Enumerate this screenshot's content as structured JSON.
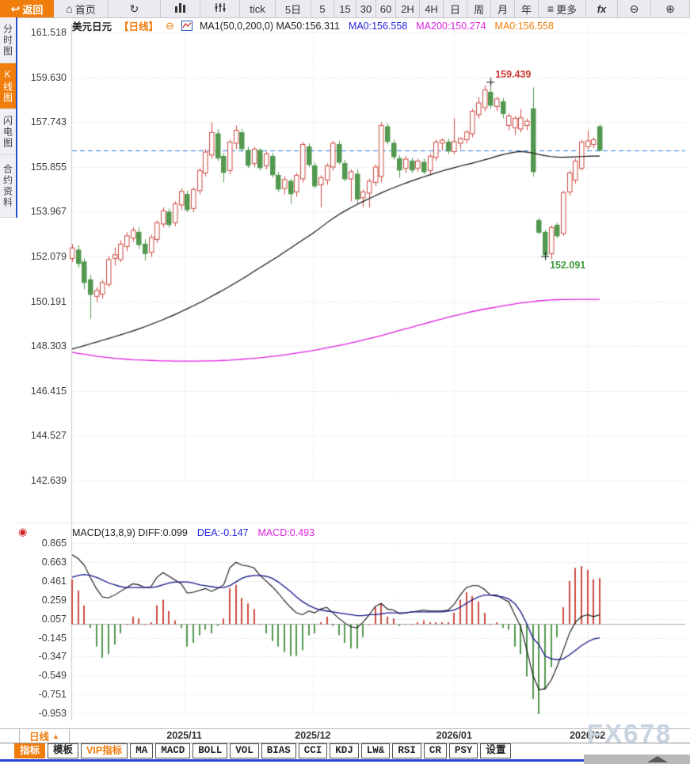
{
  "topbar": {
    "items": [
      {
        "name": "back-button",
        "icon": "back-arrow-icon",
        "glyph": "↩",
        "label": "返回",
        "active": true
      },
      {
        "name": "home-button",
        "icon": "home-icon",
        "glyph": "⌂",
        "label": "首页"
      },
      {
        "name": "refresh-button",
        "icon": "refresh-icon",
        "glyph": "↻",
        "label": ""
      },
      {
        "name": "kline-chart-button",
        "icon": "bar-chart-icon",
        "svg": "bars",
        "label": ""
      },
      {
        "name": "volume-bars-button",
        "icon": "tick-bars-icon",
        "svg": "ticks",
        "label": ""
      },
      {
        "name": "interval-tick-button",
        "label": "tick"
      },
      {
        "name": "interval-5d-button",
        "label": "5日"
      },
      {
        "name": "interval-5-button",
        "label": "5"
      },
      {
        "name": "interval-15-button",
        "label": "15"
      },
      {
        "name": "interval-30-button",
        "label": "30"
      },
      {
        "name": "interval-60-button",
        "label": "60"
      },
      {
        "name": "interval-2h-button",
        "label": "2H"
      },
      {
        "name": "interval-4h-button",
        "label": "4H"
      },
      {
        "name": "interval-day-button",
        "label": "日"
      },
      {
        "name": "interval-week-button",
        "label": "周"
      },
      {
        "name": "interval-month-button",
        "label": "月"
      },
      {
        "name": "interval-year-button",
        "label": "年"
      },
      {
        "name": "more-button",
        "icon": "menu-icon",
        "glyph": "≡",
        "label": "更多"
      },
      {
        "name": "fx-button",
        "label": "fx",
        "fx": true
      },
      {
        "name": "zoom-out-button",
        "icon": "zoom-out-icon",
        "glyph": "⊖",
        "label": ""
      },
      {
        "name": "zoom-in-button",
        "icon": "zoom-in-icon",
        "glyph": "⊕",
        "label": ""
      }
    ]
  },
  "sidebar": {
    "items": [
      {
        "name": "sidebar-item-time-chart",
        "label": "分时图",
        "active": false
      },
      {
        "name": "sidebar-item-kline-chart",
        "label": "K线图",
        "active": true
      },
      {
        "name": "sidebar-item-flash-chart",
        "label": "闪电图",
        "active": false
      },
      {
        "name": "sidebar-item-contract-info",
        "label": "合约资料",
        "active": false
      }
    ]
  },
  "chart_header": {
    "symbol": "美元日元",
    "period_tag": "【日线】",
    "collapse_icon": "⊖",
    "ma_segments": [
      {
        "text": "MA1(50,0,200,0) MA50:156.311",
        "color": "#222222"
      },
      {
        "text": "MA0:156.558",
        "color": "#2323dd"
      },
      {
        "text": "MA200:150.274",
        "color": "#dd22dd"
      },
      {
        "text": "MA0:156.558",
        "color": "#f07d0c"
      }
    ]
  },
  "macd_header": {
    "segments": [
      {
        "text": "MACD(13,8,9) DIFF:0.099",
        "color": "#222222"
      },
      {
        "text": "DEA:-0.147",
        "color": "#2323dd"
      },
      {
        "text": "MACD:0.493",
        "color": "#dd22dd"
      }
    ]
  },
  "period_selector": {
    "label": "日线",
    "arrow": "▲"
  },
  "bottom_tabs": [
    {
      "name": "tab-indicators",
      "label": "指标",
      "active": true
    },
    {
      "name": "tab-templates",
      "label": "模板"
    },
    {
      "name": "tab-vip-indicators",
      "label": "VIP指标",
      "vip": true
    },
    {
      "name": "tab-ma",
      "label": "MA"
    },
    {
      "name": "tab-macd",
      "label": "MACD"
    },
    {
      "name": "tab-boll",
      "label": "BOLL"
    },
    {
      "name": "tab-vol",
      "label": "VOL"
    },
    {
      "name": "tab-bias",
      "label": "BIAS"
    },
    {
      "name": "tab-cci",
      "label": "CCI"
    },
    {
      "name": "tab-kdj",
      "label": "KDJ"
    },
    {
      "name": "tab-lw",
      "label": "LW&"
    },
    {
      "name": "tab-rsi",
      "label": "RSI"
    },
    {
      "name": "tab-cr",
      "label": "CR"
    },
    {
      "name": "tab-psy",
      "label": "PSY"
    },
    {
      "name": "tab-settings",
      "label": "设置"
    }
  ],
  "watermark": "FX678",
  "colors": {
    "up": "#cc4b42",
    "down": "#53984f",
    "ma50": "#111111",
    "ma200": "#e01ee0",
    "diff": "#111111",
    "dea": "#14148c",
    "dashed": "#2e7fe0",
    "accent": "#f07d0c",
    "grid": "#d6d6d6",
    "axis": "#c8c8c8",
    "high_label": "#cc3b33",
    "low_label": "#3f9b3f"
  },
  "chart_data": {
    "type": "candlestick",
    "title": "美元日元 日线 (USD/JPY Daily)",
    "current_price": 156.558,
    "y_ticks": [
      161.518,
      159.63,
      157.743,
      155.855,
      153.967,
      152.079,
      150.191,
      148.303,
      146.415,
      144.527,
      142.639
    ],
    "x_labels": [
      "2025/11",
      "2025/12",
      "2026/01",
      "2026/02"
    ],
    "month_ticks": [
      {
        "label": "2025/11",
        "index": 18.5
      },
      {
        "label": "2025/12",
        "index": 39.7
      },
      {
        "label": "2026/01",
        "index": 63.0
      },
      {
        "label": "2026/02",
        "index": 85.0
      }
    ],
    "annotations": [
      {
        "label": "159.439",
        "type": "high",
        "candle": 69,
        "value": 159.439
      },
      {
        "label": "152.091",
        "type": "low",
        "candle": 78,
        "value": 152.091
      }
    ],
    "candles": [
      [
        152.0,
        152.6,
        151.85,
        152.44
      ],
      [
        152.35,
        152.55,
        151.6,
        151.78
      ],
      [
        151.85,
        152.0,
        150.7,
        150.98
      ],
      [
        151.1,
        151.3,
        149.45,
        150.48
      ],
      [
        150.4,
        150.78,
        150.15,
        150.65
      ],
      [
        150.5,
        151.1,
        150.3,
        150.98
      ],
      [
        150.9,
        152.1,
        150.8,
        151.95
      ],
      [
        152.0,
        152.45,
        151.7,
        152.15
      ],
      [
        151.95,
        152.75,
        151.85,
        152.6
      ],
      [
        152.5,
        153.1,
        152.3,
        152.95
      ],
      [
        152.85,
        153.3,
        152.7,
        153.18
      ],
      [
        153.1,
        153.3,
        152.4,
        152.58
      ],
      [
        152.6,
        152.8,
        151.9,
        152.2
      ],
      [
        152.25,
        153.0,
        152.05,
        152.88
      ],
      [
        152.8,
        153.6,
        152.65,
        153.5
      ],
      [
        153.45,
        154.15,
        153.3,
        154.0
      ],
      [
        153.95,
        154.1,
        153.3,
        153.42
      ],
      [
        153.5,
        154.4,
        153.35,
        154.3
      ],
      [
        154.25,
        154.95,
        154.05,
        154.82
      ],
      [
        154.7,
        154.85,
        153.95,
        154.05
      ],
      [
        154.1,
        155.0,
        153.95,
        154.9
      ],
      [
        154.85,
        155.8,
        154.7,
        155.7
      ],
      [
        155.6,
        156.6,
        155.45,
        156.48
      ],
      [
        156.35,
        157.74,
        156.2,
        157.3
      ],
      [
        157.25,
        157.45,
        156.1,
        156.22
      ],
      [
        156.3,
        156.45,
        155.2,
        155.62
      ],
      [
        155.7,
        157.0,
        155.55,
        156.9
      ],
      [
        156.85,
        157.6,
        156.6,
        157.4
      ],
      [
        157.3,
        157.45,
        156.5,
        156.62
      ],
      [
        156.55,
        156.7,
        155.8,
        155.92
      ],
      [
        156.0,
        156.7,
        155.85,
        156.6
      ],
      [
        156.55,
        156.65,
        155.7,
        155.82
      ],
      [
        155.9,
        156.5,
        155.75,
        156.4
      ],
      [
        156.3,
        156.45,
        155.4,
        155.52
      ],
      [
        155.5,
        155.65,
        154.8,
        154.92
      ],
      [
        154.95,
        155.45,
        154.7,
        155.32
      ],
      [
        155.25,
        155.35,
        154.3,
        154.72
      ],
      [
        154.8,
        155.6,
        154.6,
        155.5
      ],
      [
        155.35,
        156.9,
        155.2,
        156.8
      ],
      [
        156.7,
        156.85,
        155.85,
        155.95
      ],
      [
        155.9,
        156.05,
        154.95,
        155.05
      ],
      [
        155.1,
        155.5,
        154.15,
        155.4
      ],
      [
        155.3,
        156.0,
        155.1,
        155.9
      ],
      [
        155.85,
        156.95,
        155.7,
        156.85
      ],
      [
        156.8,
        156.95,
        155.95,
        156.05
      ],
      [
        156.0,
        156.15,
        155.25,
        155.35
      ],
      [
        155.35,
        155.75,
        154.4,
        155.65
      ],
      [
        155.55,
        155.75,
        154.3,
        154.5
      ],
      [
        154.55,
        154.9,
        154.15,
        154.8
      ],
      [
        154.75,
        155.35,
        154.15,
        155.25
      ],
      [
        155.2,
        155.95,
        155.05,
        155.85
      ],
      [
        155.45,
        157.74,
        155.2,
        157.6
      ],
      [
        157.55,
        157.7,
        156.8,
        156.92
      ],
      [
        156.85,
        157.0,
        156.15,
        156.28
      ],
      [
        156.2,
        156.35,
        155.4,
        155.72
      ],
      [
        155.8,
        156.3,
        155.6,
        156.18
      ],
      [
        156.1,
        156.25,
        155.6,
        155.72
      ],
      [
        155.8,
        156.2,
        155.65,
        156.1
      ],
      [
        156.05,
        156.2,
        155.55,
        155.65
      ],
      [
        155.7,
        156.4,
        155.55,
        156.3
      ],
      [
        156.25,
        157.0,
        156.1,
        156.9
      ],
      [
        156.85,
        157.05,
        156.55,
        156.98
      ],
      [
        156.9,
        157.05,
        156.4,
        156.52
      ],
      [
        156.5,
        157.9,
        156.4,
        156.92
      ],
      [
        156.85,
        157.1,
        156.6,
        157.05
      ],
      [
        157.0,
        157.4,
        156.85,
        157.32
      ],
      [
        157.25,
        158.3,
        157.1,
        158.2
      ],
      [
        158.05,
        158.8,
        157.9,
        158.55
      ],
      [
        158.35,
        159.3,
        158.2,
        159.1
      ],
      [
        159.0,
        159.439,
        158.3,
        158.45
      ],
      [
        158.4,
        158.8,
        158.2,
        158.72
      ],
      [
        158.6,
        158.75,
        157.9,
        158.1
      ],
      [
        157.6,
        158.1,
        157.4,
        158.0
      ],
      [
        157.5,
        158.0,
        157.2,
        157.9
      ],
      [
        157.45,
        158.3,
        157.3,
        157.92
      ],
      [
        157.6,
        157.9,
        157.4,
        157.78
      ],
      [
        158.3,
        159.2,
        155.45,
        155.65
      ],
      [
        153.6,
        153.7,
        153.0,
        153.1
      ],
      [
        153.1,
        153.2,
        152.091,
        152.15
      ],
      [
        152.2,
        153.4,
        151.95,
        153.3
      ],
      [
        153.4,
        153.5,
        152.85,
        152.95
      ],
      [
        153.05,
        154.85,
        152.95,
        154.77
      ],
      [
        154.8,
        155.7,
        154.65,
        155.6
      ],
      [
        155.3,
        156.2,
        155.15,
        156.1
      ],
      [
        155.8,
        157.0,
        155.7,
        156.9
      ],
      [
        156.7,
        157.4,
        156.6,
        156.95
      ],
      [
        156.8,
        157.1,
        156.65,
        157.0
      ],
      [
        157.55,
        157.65,
        156.5,
        156.558
      ]
    ],
    "ma50": [
      148.18,
      148.25,
      148.32,
      148.4,
      148.47,
      148.55,
      148.62,
      148.7,
      148.78,
      148.86,
      148.94,
      149.03,
      149.12,
      149.22,
      149.32,
      149.42,
      149.53,
      149.64,
      149.76,
      149.88,
      150.0,
      150.13,
      150.26,
      150.4,
      150.54,
      150.68,
      150.83,
      150.98,
      151.13,
      151.29,
      151.45,
      151.61,
      151.77,
      151.93,
      152.09,
      152.26,
      152.43,
      152.6,
      152.77,
      152.94,
      153.11,
      153.3,
      153.5,
      153.68,
      153.85,
      154.0,
      154.14,
      154.27,
      154.4,
      154.52,
      154.64,
      154.76,
      154.87,
      154.97,
      155.07,
      155.17,
      155.26,
      155.35,
      155.44,
      155.52,
      155.6,
      155.68,
      155.75,
      155.82,
      155.89,
      155.95,
      156.01,
      156.08,
      156.15,
      156.22,
      156.3,
      156.37,
      156.43,
      156.48,
      156.5,
      156.48,
      156.44,
      156.38,
      156.33,
      156.29,
      156.27,
      156.26,
      156.27,
      156.28,
      156.29,
      156.3,
      156.31,
      156.311
    ],
    "ma200": [
      148.05,
      148.0,
      147.96,
      147.92,
      147.88,
      147.85,
      147.82,
      147.79,
      147.77,
      147.75,
      147.73,
      147.72,
      147.71,
      147.7,
      147.69,
      147.68,
      147.68,
      147.67,
      147.67,
      147.67,
      147.67,
      147.67,
      147.68,
      147.68,
      147.69,
      147.7,
      147.71,
      147.73,
      147.75,
      147.77,
      147.79,
      147.81,
      147.84,
      147.87,
      147.9,
      147.93,
      147.97,
      148.01,
      148.05,
      148.09,
      148.13,
      148.18,
      148.23,
      148.28,
      148.33,
      148.38,
      148.44,
      148.5,
      148.56,
      148.62,
      148.68,
      148.75,
      148.82,
      148.89,
      148.96,
      149.03,
      149.1,
      149.17,
      149.24,
      149.31,
      149.38,
      149.45,
      149.52,
      149.58,
      149.64,
      149.7,
      149.76,
      149.81,
      149.86,
      149.91,
      149.95,
      150.0,
      150.04,
      150.08,
      150.12,
      150.15,
      150.18,
      150.21,
      150.23,
      150.25,
      150.26,
      150.265,
      150.268,
      150.27,
      150.271,
      150.272,
      150.273,
      150.274
    ],
    "macd": {
      "params": "(13,8,9)",
      "last": {
        "diff": 0.099,
        "dea": -0.147,
        "macd": 0.493
      },
      "y_ticks": [
        0.865,
        0.663,
        0.461,
        0.259,
        0.057,
        -0.145,
        -0.347,
        -0.549,
        -0.751,
        -0.953
      ],
      "diff": [
        0.74,
        0.7,
        0.63,
        0.5,
        0.38,
        0.29,
        0.28,
        0.31,
        0.35,
        0.39,
        0.43,
        0.42,
        0.39,
        0.4,
        0.5,
        0.55,
        0.51,
        0.47,
        0.43,
        0.33,
        0.34,
        0.36,
        0.38,
        0.35,
        0.38,
        0.42,
        0.6,
        0.66,
        0.63,
        0.62,
        0.6,
        0.52,
        0.46,
        0.4,
        0.33,
        0.25,
        0.18,
        0.12,
        0.1,
        0.14,
        0.12,
        0.16,
        0.18,
        0.12,
        0.06,
        0.01,
        -0.03,
        -0.04,
        0.02,
        0.1,
        0.19,
        0.22,
        0.16,
        0.15,
        0.11,
        0.12,
        0.13,
        0.14,
        0.15,
        0.14,
        0.14,
        0.14,
        0.15,
        0.21,
        0.31,
        0.39,
        0.41,
        0.41,
        0.37,
        0.31,
        0.31,
        0.27,
        0.24,
        0.1,
        -0.03,
        -0.28,
        -0.55,
        -0.7,
        -0.69,
        -0.6,
        -0.45,
        -0.28,
        -0.1,
        0.02,
        0.08,
        0.1,
        0.08,
        0.099
      ],
      "dea": [
        0.5,
        0.52,
        0.53,
        0.52,
        0.5,
        0.47,
        0.44,
        0.42,
        0.4,
        0.39,
        0.39,
        0.39,
        0.39,
        0.39,
        0.4,
        0.42,
        0.44,
        0.45,
        0.45,
        0.45,
        0.44,
        0.42,
        0.41,
        0.4,
        0.39,
        0.39,
        0.41,
        0.45,
        0.49,
        0.51,
        0.52,
        0.52,
        0.51,
        0.49,
        0.45,
        0.4,
        0.35,
        0.29,
        0.24,
        0.2,
        0.17,
        0.15,
        0.14,
        0.13,
        0.12,
        0.11,
        0.1,
        0.09,
        0.09,
        0.1,
        0.1,
        0.11,
        0.12,
        0.12,
        0.12,
        0.12,
        0.13,
        0.13,
        0.13,
        0.13,
        0.13,
        0.13,
        0.14,
        0.15,
        0.18,
        0.22,
        0.26,
        0.29,
        0.31,
        0.31,
        0.3,
        0.29,
        0.27,
        0.22,
        0.13,
        0.0,
        -0.15,
        -0.22,
        -0.34,
        -0.37,
        -0.38,
        -0.37,
        -0.33,
        -0.28,
        -0.23,
        -0.19,
        -0.16,
        -0.147
      ]
    }
  }
}
